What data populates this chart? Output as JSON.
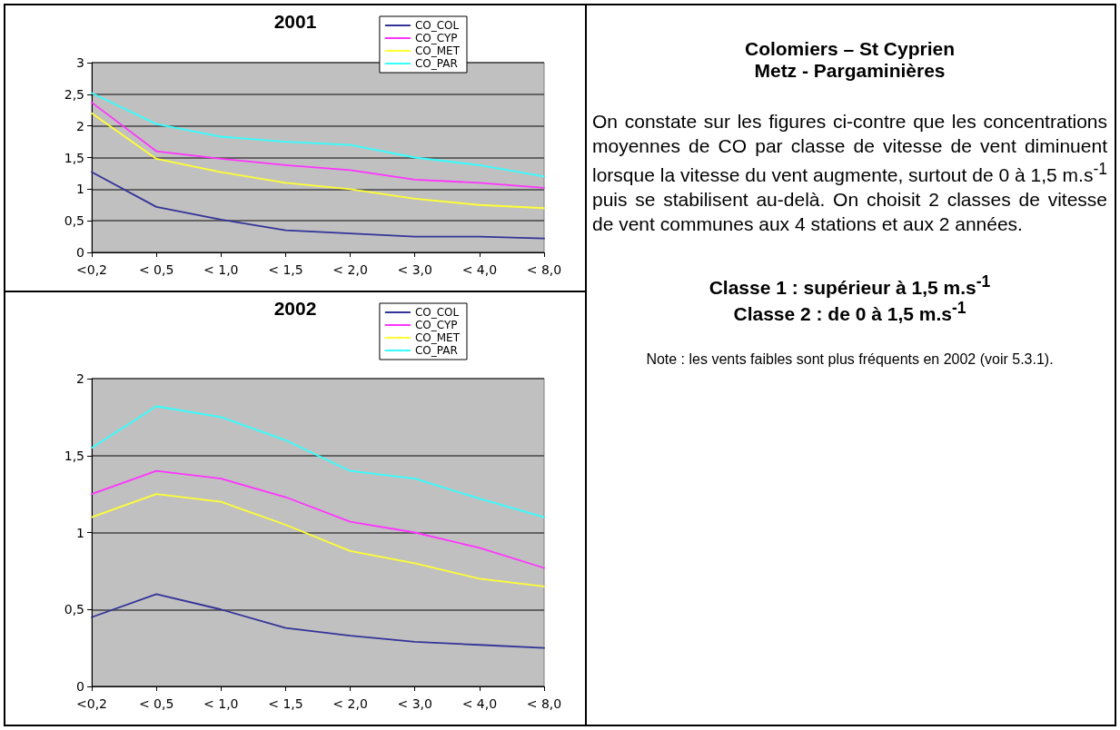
{
  "chart_data": [
    {
      "type": "line",
      "title": "2001",
      "categories": [
        "<0,2",
        "< 0,5",
        "< 1,0",
        "< 1,5",
        "< 2,0",
        "< 3,0",
        "< 4,0",
        "< 8,0"
      ],
      "series": [
        {
          "name": "CO_COL",
          "color": "#333399",
          "values": [
            1.27,
            0.72,
            0.52,
            0.35,
            0.3,
            0.25,
            0.25,
            0.22
          ]
        },
        {
          "name": "CO_CYP",
          "color": "#ff33ff",
          "values": [
            2.37,
            1.6,
            1.48,
            1.38,
            1.3,
            1.15,
            1.1,
            1.02
          ]
        },
        {
          "name": "CO_MET",
          "color": "#ffff33",
          "values": [
            2.2,
            1.48,
            1.27,
            1.1,
            1.0,
            0.85,
            0.75,
            0.7
          ]
        },
        {
          "name": "CO_PAR",
          "color": "#33ffff",
          "values": [
            2.52,
            2.03,
            1.83,
            1.75,
            1.7,
            1.5,
            1.38,
            1.2
          ]
        }
      ],
      "ylim": [
        0,
        3
      ],
      "yticks": [
        0,
        {
          "value": 0.5,
          "label": "0,5"
        },
        1,
        {
          "value": 1.5,
          "label": "1,5"
        },
        2,
        {
          "value": 2.5,
          "label": "2,5"
        },
        3
      ],
      "grid": "y",
      "legend": "top right",
      "marker": "none",
      "line_style": "solid"
    },
    {
      "type": "line",
      "title": "2002",
      "categories": [
        "<0,2",
        "< 0,5",
        "< 1,0",
        "< 1,5",
        "< 2,0",
        "< 3,0",
        "< 4,0",
        "< 8,0"
      ],
      "series": [
        {
          "name": "CO_COL",
          "color": "#333399",
          "values": [
            0.45,
            0.6,
            0.5,
            0.38,
            0.33,
            0.29,
            0.27,
            0.25
          ]
        },
        {
          "name": "CO_CYP",
          "color": "#ff33ff",
          "values": [
            1.25,
            1.4,
            1.35,
            1.23,
            1.07,
            1.0,
            0.9,
            0.77
          ]
        },
        {
          "name": "CO_MET",
          "color": "#ffff33",
          "values": [
            1.1,
            1.25,
            1.2,
            1.05,
            0.88,
            0.8,
            0.7,
            0.65
          ]
        },
        {
          "name": "CO_PAR",
          "color": "#33ffff",
          "values": [
            1.55,
            1.82,
            1.75,
            1.6,
            1.4,
            1.35,
            1.22,
            1.1
          ]
        }
      ],
      "ylim": [
        0,
        2
      ],
      "yticks": [
        0,
        {
          "value": 0.5,
          "label": "0,5"
        },
        1,
        {
          "value": 1.5,
          "label": "1,5"
        },
        2
      ],
      "grid": "y",
      "legend": "top right",
      "marker": "none",
      "line_style": "solid"
    },
    {
      "type": "other",
      "title": "Colomiers – St Cyprien",
      "subtitle": "Metz - Pargaminières",
      "annotations": [
        "On constate sur les figures ci-contre que les concentrations moyennes de CO par classe de vitesse de vent diminuent lorsque la vitesse du vent augmente, surtout de 0 à 1,5 m.s$^{-1}$ puis se stabilisent au-delà.  On choisit 2 classes de vitesse de vent communes aux 4 stations et aux 2 années.",
        "Classe 1 : supérieur à 1,5  m.s$^{-1}$",
        "Classe 2  : de 0 à 1,5 m.s$^{-1}$",
        "Note : les vents faibles sont plus fréquents en 2002 (voir 5.3.1)."
      ]
    }
  ]
}
